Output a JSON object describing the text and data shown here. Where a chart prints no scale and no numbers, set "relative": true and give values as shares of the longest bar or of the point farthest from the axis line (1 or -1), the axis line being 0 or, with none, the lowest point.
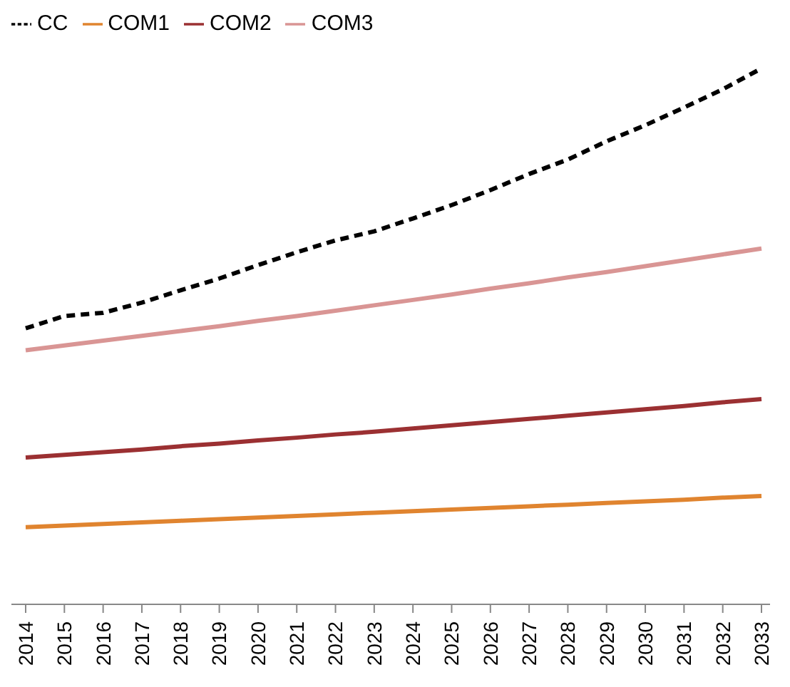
{
  "chart_data": {
    "type": "line",
    "relative": true,
    "legend": "top left",
    "grid": false,
    "marker": "none",
    "categories": [
      "2014",
      "2015",
      "2016",
      "2017",
      "2018",
      "2019",
      "2020",
      "2021",
      "2022",
      "2023",
      "2024",
      "2025",
      "2026",
      "2027",
      "2028",
      "2029",
      "2030",
      "2031",
      "2032",
      "2033"
    ],
    "series": [
      {
        "name": "CC",
        "color": "#000000",
        "line_style": "dashed",
        "values": [
          0.515,
          0.538,
          0.544,
          0.563,
          0.586,
          0.608,
          0.633,
          0.657,
          0.679,
          0.696,
          0.72,
          0.745,
          0.773,
          0.803,
          0.83,
          0.864,
          0.894,
          0.927,
          0.961,
          1
        ]
      },
      {
        "name": "COM1",
        "color": "#e0842f",
        "line_style": "solid",
        "values": [
          0.144,
          0.147,
          0.15,
          0.153,
          0.156,
          0.159,
          0.162,
          0.165,
          0.168,
          0.171,
          0.174,
          0.177,
          0.18,
          0.183,
          0.186,
          0.189,
          0.192,
          0.195,
          0.199,
          0.202
        ]
      },
      {
        "name": "COM2",
        "color": "#9b3032",
        "line_style": "solid",
        "values": [
          0.274,
          0.279,
          0.284,
          0.289,
          0.295,
          0.3,
          0.306,
          0.311,
          0.317,
          0.322,
          0.328,
          0.334,
          0.34,
          0.346,
          0.352,
          0.358,
          0.364,
          0.37,
          0.377,
          0.383
        ]
      },
      {
        "name": "COM3",
        "color": "#d99594",
        "line_style": "solid",
        "values": [
          0.474,
          0.483,
          0.492,
          0.501,
          0.51,
          0.519,
          0.529,
          0.538,
          0.548,
          0.558,
          0.568,
          0.578,
          0.589,
          0.599,
          0.61,
          0.62,
          0.631,
          0.642,
          0.653,
          0.664
        ]
      }
    ]
  }
}
